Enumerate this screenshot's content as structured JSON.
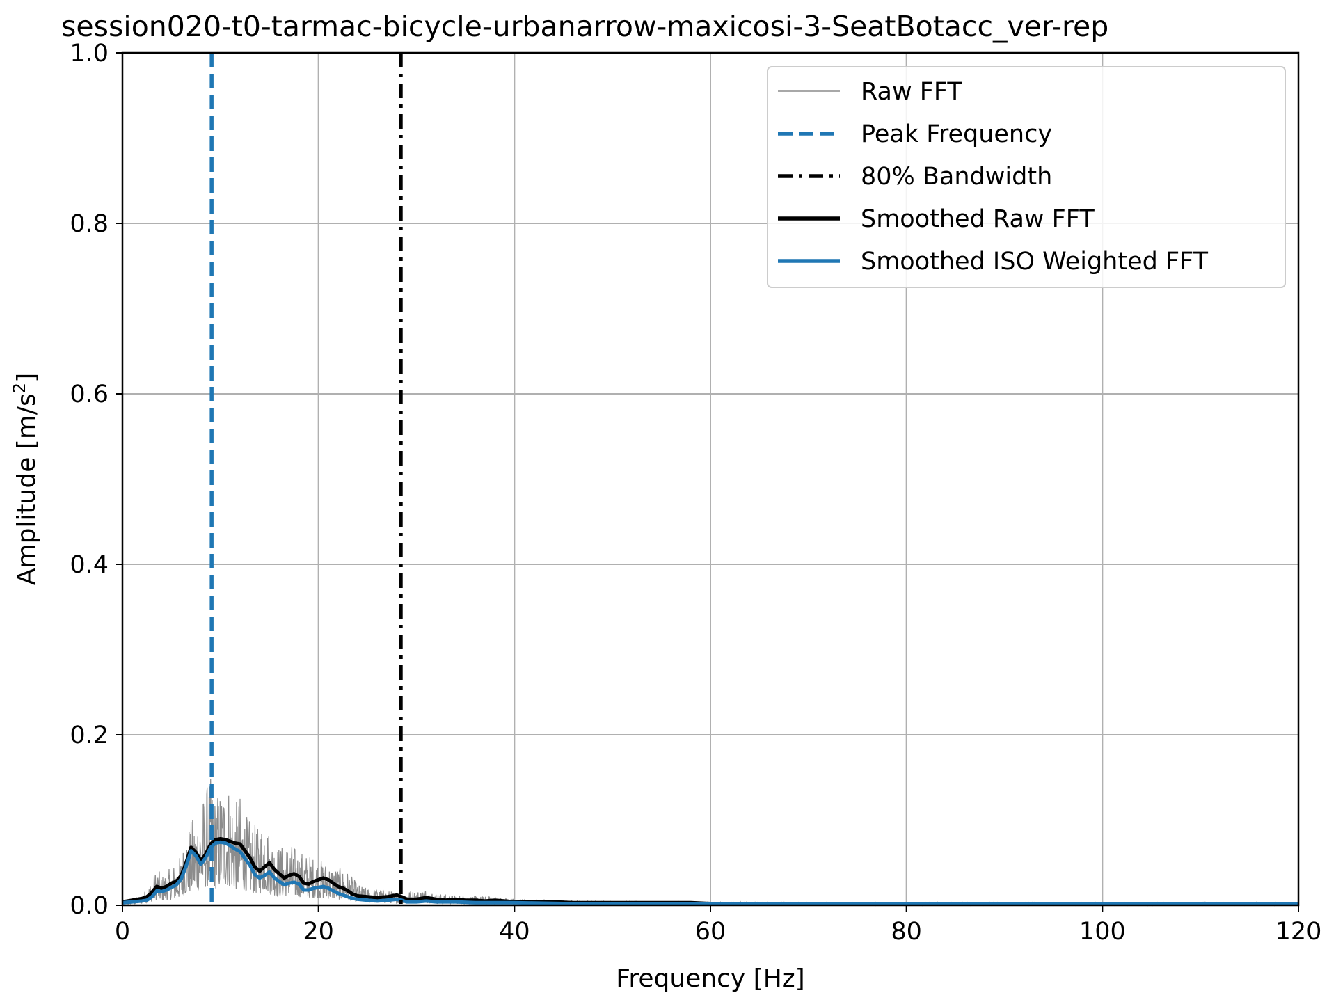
{
  "chart_data": {
    "type": "line",
    "title": "session020-t0-tarmac-bicycle-urbanarrow-maxicosi-3-SeatBotacc_ver-rep",
    "xlabel": "Frequency [Hz]",
    "ylabel_main": "Amplitude [m/s",
    "ylabel_sup": "2",
    "ylabel_close": "]",
    "xlim": [
      0,
      120
    ],
    "ylim": [
      0,
      1.0
    ],
    "x_ticks": [
      0,
      20,
      40,
      60,
      80,
      100,
      120
    ],
    "x_tick_labels": [
      "0",
      "20",
      "40",
      "60",
      "80",
      "100",
      "120"
    ],
    "y_ticks": [
      0,
      0.2,
      0.4,
      0.6,
      0.8,
      1.0
    ],
    "y_tick_labels": [
      "0.0",
      "0.2",
      "0.4",
      "0.6",
      "0.8",
      "1.0"
    ],
    "grid": true,
    "legend_position": "top-right",
    "colors": {
      "raw": "#8c8c8c",
      "peak": "#1f77b4",
      "bandwidth": "#000000",
      "smoothed_raw": "#000000",
      "smoothed_iso": "#1f77b4",
      "grid": "#b0b0b0"
    },
    "peak_frequency": 9.1,
    "bandwidth_80": 28.4,
    "raw_fft_envelope": {
      "x": [
        0,
        1,
        2,
        3,
        3.5,
        4,
        5,
        6,
        6.5,
        7,
        7.5,
        8,
        8.5,
        9,
        9.5,
        10,
        10.5,
        11,
        11.5,
        12,
        12.5,
        13,
        14,
        14.5,
        15,
        16,
        17,
        18,
        19,
        20,
        21,
        22,
        23,
        24,
        25,
        26,
        27,
        28,
        29,
        30,
        31,
        32,
        34,
        36,
        38,
        40,
        42,
        45,
        50,
        55,
        60,
        70,
        80,
        90,
        100,
        110,
        120
      ],
      "y": [
        0.005,
        0.008,
        0.012,
        0.03,
        0.045,
        0.035,
        0.045,
        0.06,
        0.09,
        0.1,
        0.11,
        0.12,
        0.14,
        0.15,
        0.13,
        0.14,
        0.15,
        0.145,
        0.12,
        0.13,
        0.11,
        0.1,
        0.09,
        0.12,
        0.085,
        0.07,
        0.075,
        0.065,
        0.06,
        0.055,
        0.05,
        0.045,
        0.04,
        0.025,
        0.02,
        0.02,
        0.018,
        0.015,
        0.018,
        0.017,
        0.02,
        0.014,
        0.012,
        0.011,
        0.01,
        0.008,
        0.007,
        0.006,
        0.005,
        0.004,
        0.004,
        0.003,
        0.003,
        0.003,
        0.003,
        0.003,
        0.003
      ]
    },
    "series": [
      {
        "name": "Smoothed Raw FFT",
        "x": [
          0,
          1,
          2,
          2.5,
          3,
          3.5,
          4,
          4.5,
          5,
          5.5,
          6,
          6.5,
          7,
          7.5,
          8,
          8.5,
          9,
          9.5,
          10,
          10.5,
          11,
          11.5,
          12,
          12.5,
          13,
          13.5,
          14,
          14.5,
          15,
          15.5,
          16,
          16.5,
          17,
          17.5,
          18,
          18.5,
          19,
          19.5,
          20,
          20.5,
          21,
          21.5,
          22,
          22.5,
          23,
          23.5,
          24,
          25,
          26,
          27,
          28,
          28.5,
          29,
          30,
          31,
          32,
          33,
          34,
          35,
          36,
          37,
          38,
          39,
          40,
          42,
          44,
          46,
          48,
          49,
          50,
          52,
          55,
          56,
          58,
          60,
          65,
          70,
          80,
          90,
          100,
          110,
          120
        ],
        "y": [
          0.004,
          0.006,
          0.008,
          0.01,
          0.015,
          0.022,
          0.02,
          0.022,
          0.026,
          0.028,
          0.035,
          0.05,
          0.068,
          0.062,
          0.052,
          0.06,
          0.072,
          0.077,
          0.078,
          0.077,
          0.075,
          0.073,
          0.072,
          0.064,
          0.056,
          0.045,
          0.04,
          0.045,
          0.05,
          0.042,
          0.037,
          0.032,
          0.035,
          0.037,
          0.034,
          0.026,
          0.025,
          0.028,
          0.03,
          0.032,
          0.03,
          0.026,
          0.022,
          0.02,
          0.017,
          0.013,
          0.011,
          0.01,
          0.009,
          0.01,
          0.012,
          0.01,
          0.007,
          0.007,
          0.009,
          0.007,
          0.006,
          0.007,
          0.006,
          0.006,
          0.005,
          0.006,
          0.005,
          0.004,
          0.004,
          0.004,
          0.003,
          0.003,
          0.003,
          0.003,
          0.003,
          0.003,
          0.003,
          0.003,
          0.002,
          0.002,
          0.002,
          0.002,
          0.002,
          0.002,
          0.002,
          0.002
        ]
      },
      {
        "name": "Smoothed ISO Weighted FFT",
        "x": [
          0,
          1,
          2,
          2.5,
          3,
          3.5,
          4,
          4.5,
          5,
          5.5,
          6,
          6.5,
          7,
          7.5,
          8,
          8.5,
          9,
          9.5,
          10,
          10.5,
          11,
          11.5,
          12,
          12.5,
          13,
          13.5,
          14,
          14.5,
          15,
          15.5,
          16,
          16.5,
          17,
          17.5,
          18,
          18.5,
          19,
          19.5,
          20,
          20.5,
          21,
          21.5,
          22,
          22.5,
          23,
          23.5,
          24,
          25,
          26,
          27,
          28,
          28.5,
          29,
          30,
          31,
          32,
          34,
          36,
          38,
          40,
          45,
          50,
          60,
          70,
          80,
          90,
          100,
          110,
          120
        ],
        "y": [
          0.003,
          0.004,
          0.005,
          0.006,
          0.01,
          0.017,
          0.016,
          0.018,
          0.021,
          0.024,
          0.031,
          0.046,
          0.064,
          0.058,
          0.048,
          0.056,
          0.068,
          0.073,
          0.074,
          0.073,
          0.07,
          0.066,
          0.063,
          0.055,
          0.047,
          0.036,
          0.032,
          0.035,
          0.039,
          0.032,
          0.028,
          0.024,
          0.026,
          0.027,
          0.025,
          0.018,
          0.018,
          0.02,
          0.021,
          0.022,
          0.02,
          0.017,
          0.014,
          0.012,
          0.01,
          0.008,
          0.007,
          0.006,
          0.005,
          0.006,
          0.007,
          0.006,
          0.004,
          0.004,
          0.005,
          0.004,
          0.004,
          0.003,
          0.003,
          0.003,
          0.002,
          0.002,
          0.002,
          0.002,
          0.002,
          0.002,
          0.002,
          0.002,
          0.002
        ]
      }
    ],
    "legend": [
      {
        "label": "Raw FFT",
        "style": "raw"
      },
      {
        "label": "Peak Frequency",
        "style": "peak"
      },
      {
        "label": "80% Bandwidth",
        "style": "bandwidth"
      },
      {
        "label": "Smoothed Raw FFT",
        "style": "smoothed_raw"
      },
      {
        "label": "Smoothed ISO Weighted FFT",
        "style": "smoothed_iso"
      }
    ]
  }
}
